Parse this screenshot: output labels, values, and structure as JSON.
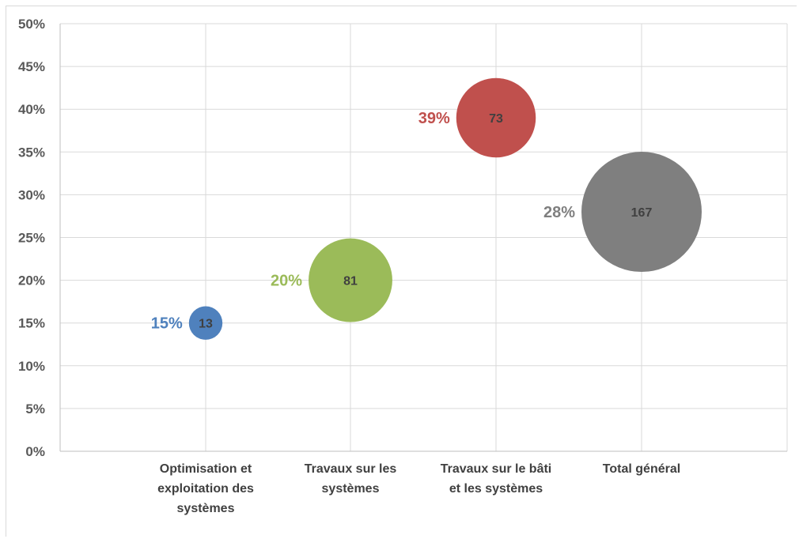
{
  "chart_data": {
    "type": "scatter",
    "bubble": true,
    "categories": [
      [
        "Optimisation et",
        "exploitation des",
        "systèmes"
      ],
      [
        "Travaux sur les",
        "systèmes"
      ],
      [
        "Travaux sur le bâti",
        "et les systèmes"
      ],
      [
        "Total général"
      ]
    ],
    "points": [
      {
        "category": 0,
        "y": 15,
        "size": 13,
        "pct_label": "15%",
        "count_label": "13",
        "color": "#4f81bd"
      },
      {
        "category": 1,
        "y": 20,
        "size": 81,
        "pct_label": "20%",
        "count_label": "81",
        "color": "#9bbb59"
      },
      {
        "category": 2,
        "y": 39,
        "size": 73,
        "pct_label": "39%",
        "count_label": "73",
        "color": "#c0504d"
      },
      {
        "category": 3,
        "y": 28,
        "size": 167,
        "pct_label": "28%",
        "count_label": "167",
        "color": "#7f7f7f"
      }
    ],
    "y_ticks": [
      "0%",
      "5%",
      "10%",
      "15%",
      "20%",
      "25%",
      "30%",
      "35%",
      "40%",
      "45%",
      "50%"
    ],
    "ylim": [
      0,
      50
    ],
    "grid": true,
    "title": "",
    "xlabel": "",
    "ylabel": ""
  }
}
